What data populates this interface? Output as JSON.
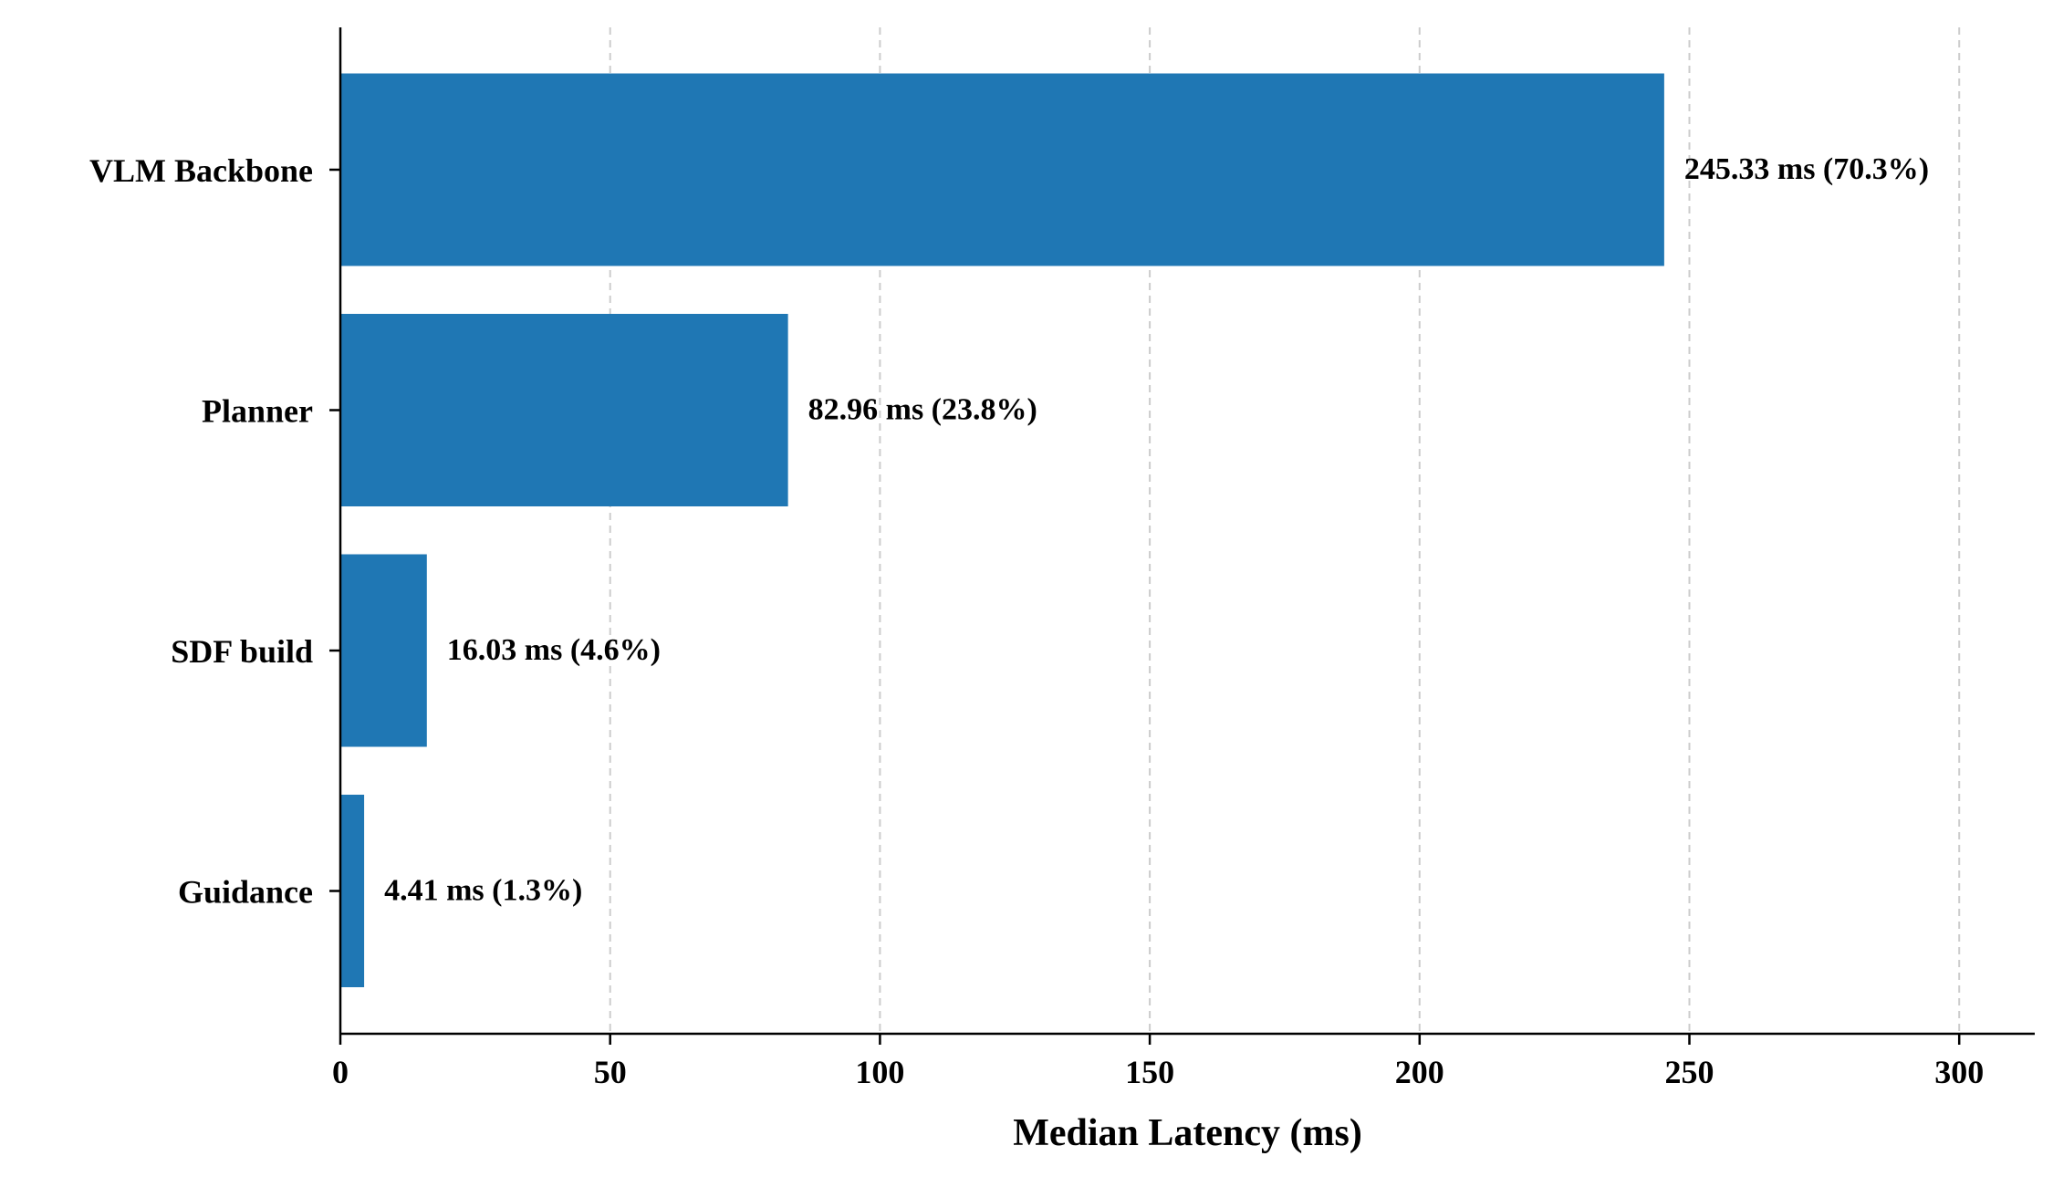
{
  "chart_data": {
    "type": "bar",
    "orientation": "horizontal",
    "categories": [
      "VLM Backbone",
      "Planner",
      "SDF build",
      "Guidance"
    ],
    "values": [
      245.33,
      82.96,
      16.03,
      4.41
    ],
    "value_labels": [
      "245.33 ms (70.3%)",
      "82.96 ms (23.8%)",
      "16.03 ms (4.6%)",
      "4.41 ms (1.3%)"
    ],
    "title": "",
    "xlabel": "Median Latency (ms)",
    "ylabel": "",
    "xlim": [
      0,
      314
    ],
    "xticks": [
      0,
      50,
      100,
      150,
      200,
      250,
      300
    ],
    "xtick_labels": [
      "0",
      "50",
      "100",
      "150",
      "200",
      "250",
      "300"
    ],
    "grid": "x, dashed",
    "legend": "none",
    "bar_color": "#1f77b4"
  }
}
